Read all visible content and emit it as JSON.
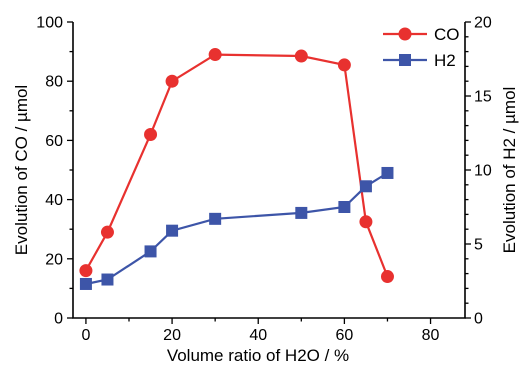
{
  "chart_data": {
    "type": "line",
    "xlabel": "Volume ratio of H2O / %",
    "ylabel_left": "Evolution of CO / µmol",
    "ylabel_right": "Evolution of H2 / µmol",
    "xlim": [
      -3,
      88
    ],
    "ylim_left": [
      0,
      100
    ],
    "ylim_right": [
      0,
      20
    ],
    "x_ticks": [
      0,
      20,
      40,
      60,
      80
    ],
    "y_left_ticks": [
      0,
      20,
      40,
      60,
      80,
      100
    ],
    "y_right_ticks": [
      0,
      5,
      10,
      15,
      20
    ],
    "legend_position": "top-right",
    "series": [
      {
        "name": "CO",
        "axis": "left",
        "marker": "circle",
        "color": "#e8312f",
        "x": [
          0,
          5,
          15,
          20,
          30,
          50,
          60,
          65,
          70
        ],
        "y": [
          16,
          29,
          62,
          80,
          89,
          88.5,
          85.5,
          32.5,
          14
        ]
      },
      {
        "name": "H2",
        "axis": "right",
        "marker": "square",
        "color": "#3d55a8",
        "x": [
          0,
          5,
          15,
          20,
          30,
          50,
          60,
          65,
          70
        ],
        "y": [
          2.3,
          2.6,
          4.5,
          5.9,
          6.7,
          7.1,
          7.5,
          8.9,
          9.8
        ]
      }
    ]
  }
}
